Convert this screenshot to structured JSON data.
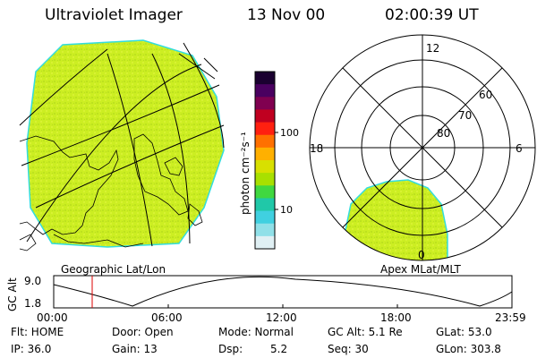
{
  "header": {
    "instrument": "Ultraviolet Imager",
    "date": "13 Nov 00",
    "time": "02:00:39 UT"
  },
  "colorbar": {
    "unit_label": "photon cm⁻²s⁻¹",
    "tick_100": "100",
    "tick_10": "10",
    "colors": [
      "#1a0030",
      "#4a0060",
      "#800050",
      "#c00020",
      "#ff2010",
      "#ff7000",
      "#ffb000",
      "#d8e000",
      "#a8e000",
      "#40d840",
      "#20c8a8",
      "#40d0e0",
      "#90e0e8",
      "#e0f0f4"
    ]
  },
  "geo_panel": {
    "label": "Geographic Lat/Lon",
    "fill_color": "#ccee22",
    "edge_color": "#33dddd"
  },
  "polar_panel": {
    "label": "Apex MLat/MLT",
    "mlt_top": "12",
    "mlt_left": "18",
    "mlt_right": "6",
    "mlt_bottom": "0",
    "lat_60": "60",
    "lat_70": "70",
    "lat_80": "80"
  },
  "altitude_plot": {
    "ylabel": "GC Alt",
    "ytick_top": "9.0",
    "ytick_bottom": "1.8",
    "xticks": [
      "00:00",
      "06:00",
      "12:00",
      "18:00",
      "23:59"
    ],
    "marker_color": "#dd0000"
  },
  "info": {
    "flt": "Flt: HOME",
    "ip": "IP: 36.0",
    "door": "Door: Open",
    "gain": "Gain: 13",
    "mode": "Mode: Normal",
    "dsp_label": "Dsp:",
    "dsp_value": "5.2",
    "gcalt": "GC Alt: 5.1 Re",
    "seq": "Seq: 30",
    "glat": "GLat: 53.0",
    "glon": "GLon: 303.8"
  }
}
